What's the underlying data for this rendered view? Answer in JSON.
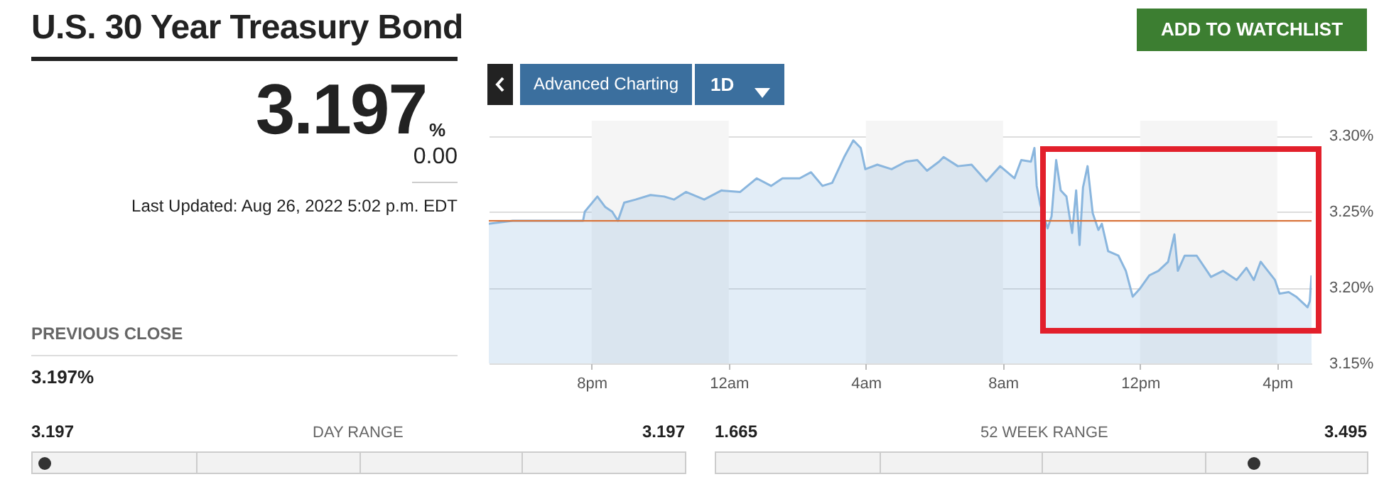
{
  "chart_data": {
    "type": "area",
    "title": "U.S. 30 Year Treasury Bond",
    "x": [
      "2022-08-25T17:00",
      "2022-08-25T17:42",
      "2022-08-25T19:45",
      "2022-08-25T19:48",
      "2022-08-25T20:10",
      "2022-08-25T20:24",
      "2022-08-25T20:36",
      "2022-08-25T20:46",
      "2022-08-25T20:57",
      "2022-08-25T21:17",
      "2022-08-25T21:43",
      "2022-08-25T22:07",
      "2022-08-25T22:24",
      "2022-08-25T22:45",
      "2022-08-25T23:17",
      "2022-08-25T23:47",
      "2022-08-26T00:20",
      "2022-08-26T00:49",
      "2022-08-26T01:14",
      "2022-08-26T01:34",
      "2022-08-26T02:04",
      "2022-08-26T02:24",
      "2022-08-26T02:44",
      "2022-08-26T03:01",
      "2022-08-26T03:22",
      "2022-08-26T03:38",
      "2022-08-26T03:51",
      "2022-08-26T03:59",
      "2022-08-26T04:20",
      "2022-08-26T04:45",
      "2022-08-26T05:10",
      "2022-08-26T05:30",
      "2022-08-26T05:47",
      "2022-08-26T06:08",
      "2022-08-26T06:16",
      "2022-08-26T06:41",
      "2022-08-26T07:05",
      "2022-08-26T07:31",
      "2022-08-26T07:55",
      "2022-08-26T08:20",
      "2022-08-26T08:32",
      "2022-08-26T08:49",
      "2022-08-26T08:55",
      "2022-08-26T08:59",
      "2022-08-26T09:05",
      "2022-08-26T09:18",
      "2022-08-26T09:25",
      "2022-08-26T09:33",
      "2022-08-26T09:41",
      "2022-08-26T09:51",
      "2022-08-26T10:01",
      "2022-08-26T10:08",
      "2022-08-26T10:14",
      "2022-08-26T10:20",
      "2022-08-26T10:28",
      "2022-08-26T10:37",
      "2022-08-26T10:47",
      "2022-08-26T10:53",
      "2022-08-26T11:04",
      "2022-08-26T11:22",
      "2022-08-26T11:35",
      "2022-08-26T11:47",
      "2022-08-26T11:59",
      "2022-08-26T12:16",
      "2022-08-26T12:32",
      "2022-08-26T12:49",
      "2022-08-26T13:00",
      "2022-08-26T13:06",
      "2022-08-26T13:18",
      "2022-08-26T13:39",
      "2022-08-26T14:04",
      "2022-08-26T14:25",
      "2022-08-26T14:49",
      "2022-08-26T15:06",
      "2022-08-26T15:19",
      "2022-08-26T15:31",
      "2022-08-26T15:56",
      "2022-08-26T16:04",
      "2022-08-26T16:20",
      "2022-08-26T16:33",
      "2022-08-26T16:53",
      "2022-08-26T16:57",
      "2022-08-26T17:00"
    ],
    "series": [
      {
        "color": "#8ab6de",
        "values": [
          3.242,
          3.244,
          3.244,
          3.25,
          3.26,
          3.253,
          3.25,
          3.244,
          3.256,
          3.258,
          3.261,
          3.26,
          3.258,
          3.263,
          3.258,
          3.264,
          3.263,
          3.272,
          3.267,
          3.272,
          3.272,
          3.276,
          3.267,
          3.269,
          3.286,
          3.297,
          3.292,
          3.278,
          3.281,
          3.278,
          3.283,
          3.284,
          3.277,
          3.283,
          3.286,
          3.28,
          3.281,
          3.27,
          3.28,
          3.272,
          3.284,
          3.283,
          3.292,
          3.267,
          3.255,
          3.239,
          3.247,
          3.284,
          3.264,
          3.26,
          3.236,
          3.264,
          3.228,
          3.266,
          3.28,
          3.249,
          3.238,
          3.242,
          3.224,
          3.221,
          3.211,
          3.194,
          3.199,
          3.208,
          3.211,
          3.217,
          3.235,
          3.211,
          3.221,
          3.221,
          3.207,
          3.211,
          3.205,
          3.213,
          3.205,
          3.217,
          3.205,
          3.196,
          3.197,
          3.194,
          3.187,
          3.191,
          3.208
        ]
      }
    ],
    "xlim": [
      "2022-08-25T17:00",
      "2022-08-26T17:00"
    ],
    "xticks": [
      {
        "value": "2022-08-25T20:00",
        "label": "8pm"
      },
      {
        "value": "2022-08-26T00:00",
        "label": "12am"
      },
      {
        "value": "2022-08-26T04:00",
        "label": "4am"
      },
      {
        "value": "2022-08-26T08:00",
        "label": "8am"
      },
      {
        "value": "2022-08-26T12:00",
        "label": "12pm"
      },
      {
        "value": "2022-08-26T16:00",
        "label": "4pm"
      }
    ],
    "ylim": [
      3.15,
      3.31
    ],
    "yticks": [
      {
        "value": 3.15,
        "label": "3.15%"
      },
      {
        "value": 3.2,
        "label": "3.20%"
      },
      {
        "value": 3.25,
        "label": "3.25%"
      },
      {
        "value": 3.3,
        "label": "3.30%"
      }
    ],
    "grid": "y",
    "ref_lines": [
      {
        "axis": "y",
        "value": 3.244,
        "color": "#d9773f"
      }
    ],
    "bands": [
      {
        "axis": "x",
        "from": "2022-08-25T20:00",
        "to": "2022-08-26T00:00",
        "color": "#f5f5f5"
      },
      {
        "axis": "x",
        "from": "2022-08-26T04:00",
        "to": "2022-08-26T08:00",
        "color": "#f5f5f5"
      },
      {
        "axis": "x",
        "from": "2022-08-26T12:00",
        "to": "2022-08-26T16:00",
        "color": "#f5f5f5"
      }
    ],
    "annotations": [
      "3.197",
      "%",
      "0.00",
      "Last Updated: Aug 26, 2022 5:02 p.m. EDT",
      "PREVIOUS CLOSE",
      "3.197%",
      "3.197",
      "DAY RANGE",
      "3.197",
      "1.665",
      "52 WEEK RANGE",
      "3.495",
      "ADD TO WATCHLIST",
      "Advanced Charting",
      "1D"
    ]
  }
}
